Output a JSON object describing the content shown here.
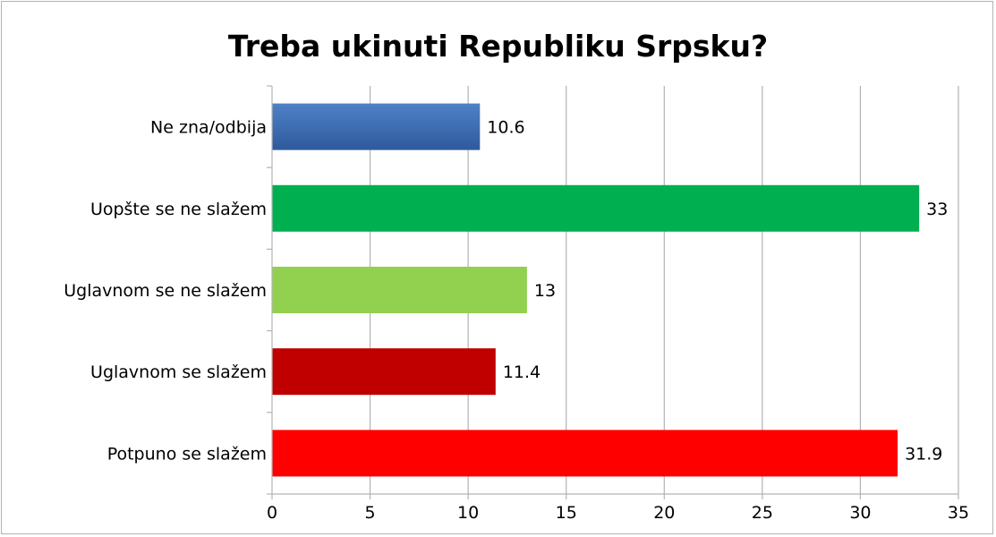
{
  "chart_data": {
    "type": "bar",
    "orientation": "horizontal",
    "title": "Treba ukinuti Republiku Srpsku?",
    "categories": [
      "Ne zna/odbija",
      "Uopšte se ne slažem",
      "Uglavnom se ne slažem",
      "Uglavnom se slažem",
      "Potpuno se slažem"
    ],
    "values": [
      10.6,
      33,
      13,
      11.4,
      31.9
    ],
    "value_labels": [
      "10.6",
      "33",
      "13",
      "11.4",
      "31.9"
    ],
    "bar_colors": [
      "#3f6fb6",
      "#00b050",
      "#92d050",
      "#c00000",
      "#ff0000"
    ],
    "xlim": [
      0,
      35
    ],
    "x_ticks": [
      0,
      5,
      10,
      15,
      20,
      25,
      30,
      35
    ],
    "x_tick_labels": [
      "0",
      "5",
      "10",
      "15",
      "20",
      "25",
      "30",
      "35"
    ],
    "grid": "vertical",
    "legend": "none"
  }
}
